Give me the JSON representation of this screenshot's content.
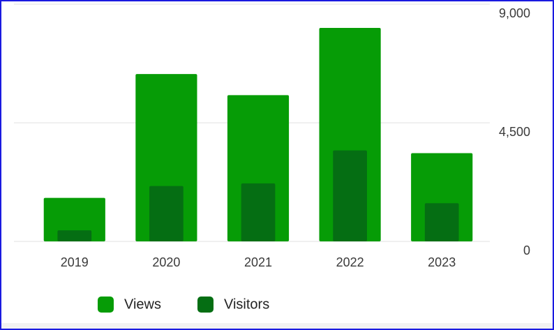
{
  "chart_data": {
    "type": "bar",
    "categories": [
      "2019",
      "2020",
      "2021",
      "2022",
      "2023"
    ],
    "series": [
      {
        "name": "Views",
        "color": "#069c06",
        "values": [
          1650,
          6350,
          5550,
          8100,
          3350
        ]
      },
      {
        "name": "Visitors",
        "color": "#056e13",
        "values": [
          420,
          2100,
          2200,
          3450,
          1450
        ]
      }
    ],
    "ylim": [
      0,
      9000
    ],
    "yticks": [
      0,
      {
        "value": 4500,
        "label": "4,500"
      },
      {
        "value": 9000,
        "label": "9,000"
      }
    ],
    "grid": true,
    "legend": "bottom"
  }
}
